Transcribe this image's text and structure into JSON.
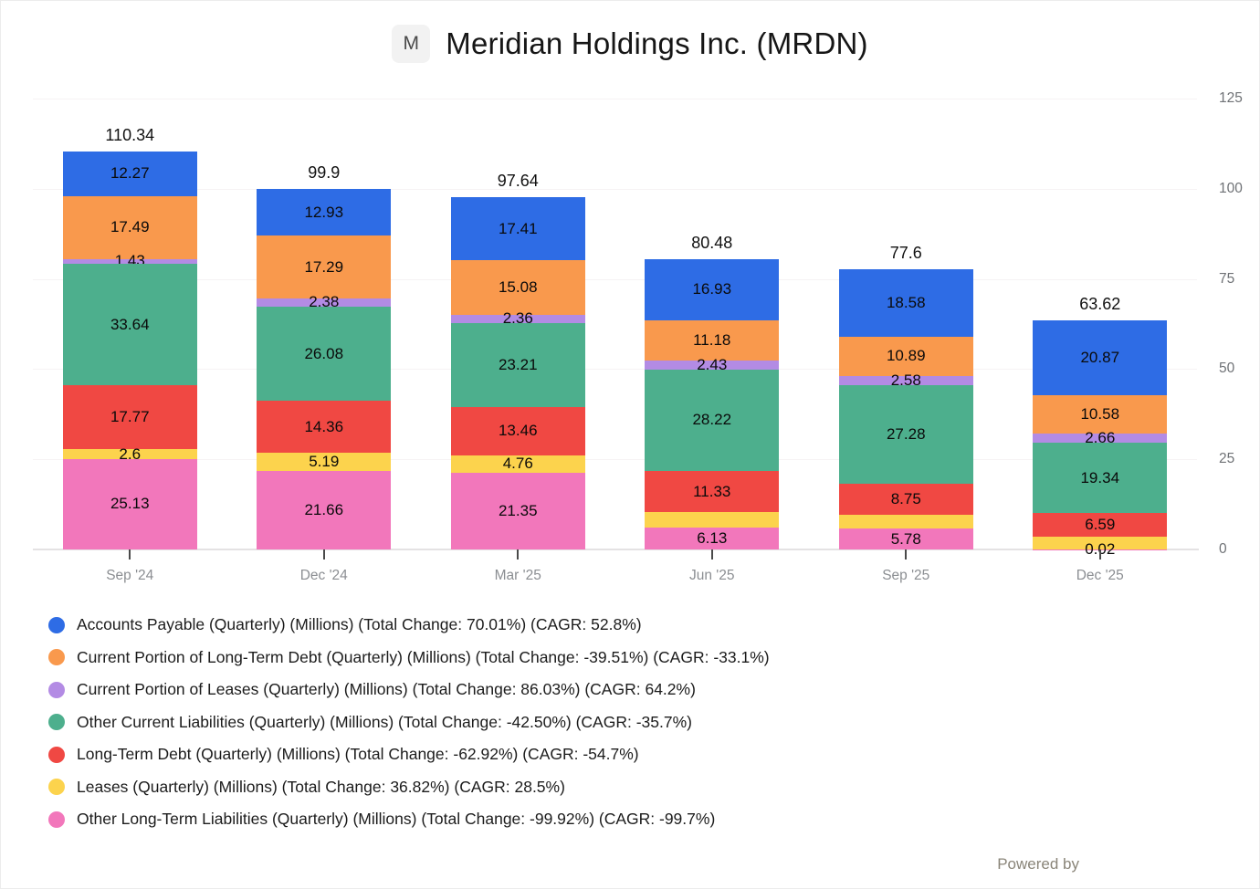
{
  "header": {
    "logo_letter": "M",
    "title": "Meridian Holdings Inc. (MRDN)"
  },
  "chart_data": {
    "type": "bar",
    "stacked": true,
    "title": "Meridian Holdings Inc. (MRDN)",
    "categories": [
      "Sep '24",
      "Dec '24",
      "Mar '25",
      "Jun '25",
      "Sep '25",
      "Dec '25"
    ],
    "totals": [
      "110.34",
      "99.9",
      "97.64",
      "80.48",
      "77.6",
      "63.62"
    ],
    "y_axis": {
      "side": "right",
      "min": 0,
      "max": 125,
      "ticks": [
        0,
        25,
        50,
        75,
        100,
        125
      ],
      "grid": true
    },
    "series": [
      {
        "name": "Accounts Payable (Quarterly) (Millions)",
        "color": "#2e6ce5",
        "values": [
          12.27,
          12.93,
          17.41,
          16.93,
          18.58,
          20.87
        ],
        "labels": [
          "12.27",
          "12.93",
          "17.41",
          "16.93",
          "18.58",
          "20.87"
        ]
      },
      {
        "name": "Current Portion of Long-Term Debt (Quarterly) (Millions)",
        "color": "#f9994d",
        "values": [
          17.49,
          17.29,
          15.08,
          11.18,
          10.89,
          10.58
        ],
        "labels": [
          "17.49",
          "17.29",
          "15.08",
          "11.18",
          "10.89",
          "10.58"
        ]
      },
      {
        "name": "Current Portion of Leases (Quarterly) (Millions)",
        "color": "#b38be4",
        "values": [
          1.43,
          2.38,
          2.36,
          2.43,
          2.58,
          2.66
        ],
        "labels": [
          "1.43",
          "2.38",
          "2.36",
          "2.43",
          "2.58",
          "2.66"
        ]
      },
      {
        "name": "Other Current Liabilities (Quarterly) (Millions)",
        "color": "#4daf8d",
        "values": [
          33.64,
          26.08,
          23.21,
          28.22,
          27.28,
          19.34
        ],
        "labels": [
          "33.64",
          "26.08",
          "23.21",
          "28.22",
          "27.28",
          "19.34"
        ]
      },
      {
        "name": "Long-Term Debt (Quarterly) (Millions)",
        "color": "#f04843",
        "values": [
          17.77,
          14.36,
          13.46,
          11.33,
          8.75,
          6.59
        ],
        "labels": [
          "17.77",
          "14.36",
          "13.46",
          "11.33",
          "8.75",
          "6.59"
        ]
      },
      {
        "name": "Leases (Quarterly) (Millions)",
        "color": "#fcd34d",
        "values": [
          2.6,
          5.19,
          4.76,
          4.26,
          3.74,
          3.56
        ],
        "labels": [
          "2.6",
          "5.19",
          "4.76",
          "",
          "",
          ""
        ]
      },
      {
        "name": "Other Long-Term Liabilities (Quarterly) (Millions)",
        "color": "#f277bb",
        "values": [
          25.13,
          21.66,
          21.35,
          6.13,
          5.78,
          0.02
        ],
        "labels": [
          "25.13",
          "21.66",
          "21.35",
          "6.13",
          "5.78",
          "0.02"
        ]
      }
    ],
    "stack_order": "first series on top, last series at bottom"
  },
  "legend": {
    "items": [
      {
        "color": "#2e6ce5",
        "label": "Accounts Payable (Quarterly) (Millions) (Total Change: 70.01%) (CAGR: 52.8%)"
      },
      {
        "color": "#f9994d",
        "label": "Current Portion of Long-Term Debt (Quarterly) (Millions) (Total Change: -39.51%) (CAGR: -33.1%)"
      },
      {
        "color": "#b38be4",
        "label": "Current Portion of Leases (Quarterly) (Millions) (Total Change: 86.03%) (CAGR: 64.2%)"
      },
      {
        "color": "#4daf8d",
        "label": "Other Current Liabilities (Quarterly) (Millions) (Total Change: -42.50%) (CAGR: -35.7%)"
      },
      {
        "color": "#f04843",
        "label": "Long-Term Debt (Quarterly) (Millions) (Total Change: -62.92%) (CAGR: -54.7%)"
      },
      {
        "color": "#fcd34d",
        "label": "Leases (Quarterly) (Millions) (Total Change: 36.82%) (CAGR: 28.5%)"
      },
      {
        "color": "#f277bb",
        "label": "Other Long-Term Liabilities (Quarterly) (Millions) (Total Change: -99.92%) (CAGR: -99.7%)"
      }
    ]
  },
  "footer": {
    "powered_by": "Powered by"
  }
}
